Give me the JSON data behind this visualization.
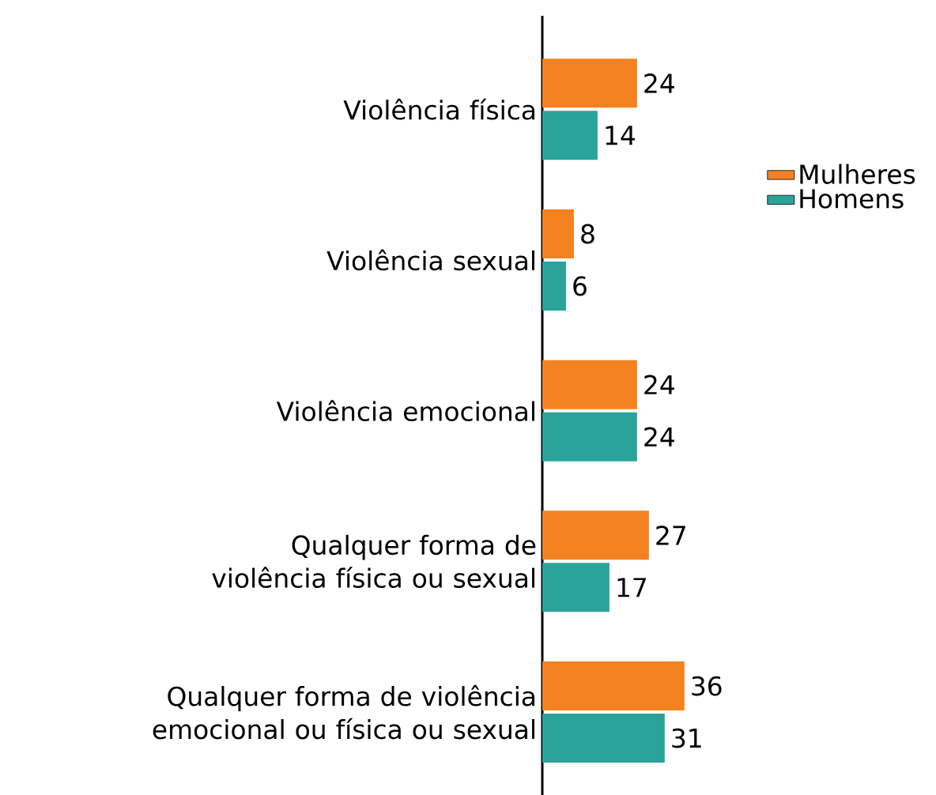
{
  "chart_data": {
    "type": "bar",
    "orientation": "horizontal",
    "data_labels": true,
    "legend": "right",
    "categories": [
      "Violência física",
      "Violência sexual",
      "Violência emocional",
      "Qualquer forma de violência física ou sexual",
      "Qualquer forma de violência emocional ou física ou sexual"
    ],
    "series": [
      {
        "name": "Mulheres",
        "color": "#f58220",
        "values": [
          24,
          8,
          24,
          27,
          36
        ]
      },
      {
        "name": "Homens",
        "color": "#2aa39b",
        "values": [
          14,
          6,
          24,
          17,
          31
        ]
      }
    ]
  }
}
